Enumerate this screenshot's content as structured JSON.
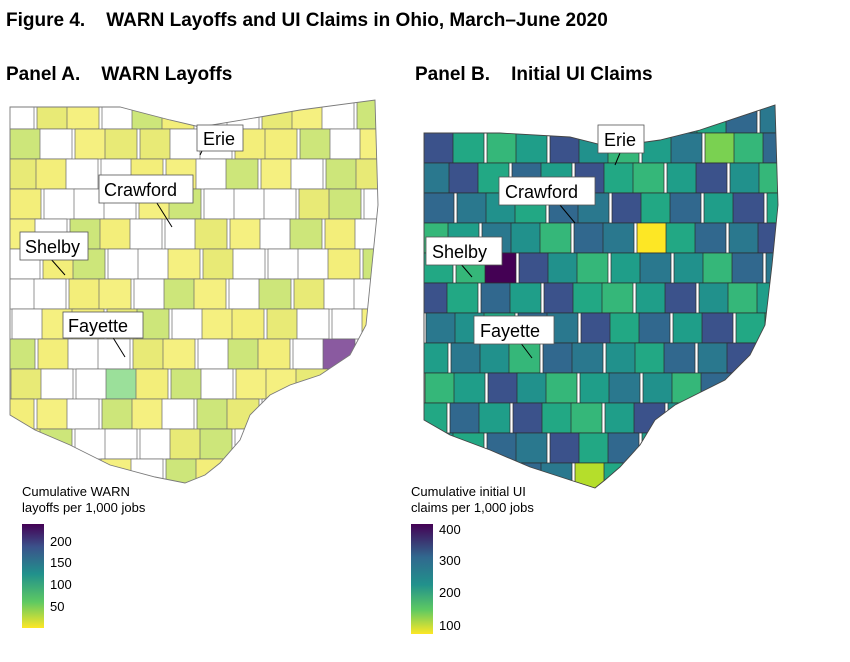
{
  "figure_title": "Figure 4.    WARN Layoffs and UI Claims in Ohio, March–June 2020",
  "panel_a": {
    "title": "Panel A.    WARN Layoffs",
    "legend_title_line1": "Cumulative WARN",
    "legend_title_line2": "layoffs per 1,000 jobs",
    "legend_ticks": [
      "200",
      "150",
      "100",
      "50"
    ],
    "labels": [
      "Erie",
      "Crawford",
      "Shelby",
      "Fayette"
    ]
  },
  "panel_b": {
    "title": "Panel B.    Initial UI Claims",
    "legend_title_line1": "Cumulative initial UI",
    "legend_title_line2": "claims per 1,000 jobs",
    "legend_ticks": [
      "400",
      "300",
      "200",
      "100"
    ],
    "labels": [
      "Erie",
      "Crawford",
      "Shelby",
      "Fayette"
    ]
  },
  "colors": {
    "viridis_dark": "#440154",
    "viridis_blue": "#31688e",
    "viridis_teal": "#21918c",
    "viridis_green": "#5ec962",
    "viridis_yellow": "#fde725",
    "no_data": "#ffffff"
  }
}
